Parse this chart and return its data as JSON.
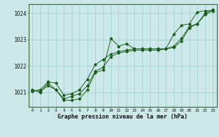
{
  "title": "Graphe pression niveau de la mer (hPa)",
  "bg_color": "#cce8e8",
  "grid_color": "#99cccc",
  "line_color": "#1a5c1a",
  "xlim": [
    -0.5,
    23.5
  ],
  "ylim": [
    1020.45,
    1024.35
  ],
  "yticks": [
    1021,
    1022,
    1023,
    1024
  ],
  "xtick_labels": [
    "0",
    "1",
    "2",
    "3",
    "4",
    "5",
    "6",
    "7",
    "8",
    "9",
    "10",
    "11",
    "12",
    "13",
    "14",
    "15",
    "16",
    "17",
    "18",
    "19",
    "20",
    "21",
    "22",
    "23"
  ],
  "series1": {
    "x": [
      0,
      1,
      2,
      3,
      4,
      5,
      6,
      7,
      8,
      9,
      10,
      11,
      12,
      13,
      14,
      15,
      16,
      17,
      18,
      19,
      20,
      21,
      22,
      23
    ],
    "y": [
      1021.1,
      1021.0,
      1021.35,
      1021.1,
      1020.7,
      1020.7,
      1020.75,
      1021.1,
      1021.75,
      1021.85,
      1023.05,
      1022.75,
      1022.85,
      1022.65,
      1022.65,
      1022.65,
      1022.65,
      1022.65,
      1023.2,
      1023.55,
      1023.6,
      1024.05,
      1024.1,
      1024.1
    ]
  },
  "series2": {
    "x": [
      0,
      1,
      2,
      3,
      4,
      5,
      6,
      7,
      8,
      9,
      10,
      11,
      12,
      13,
      14,
      15,
      16,
      17,
      18,
      19,
      20,
      21,
      22,
      23
    ],
    "y": [
      1021.05,
      1021.05,
      1021.25,
      1021.1,
      1020.75,
      1020.85,
      1020.95,
      1021.25,
      1021.8,
      1021.95,
      1022.35,
      1022.5,
      1022.55,
      1022.6,
      1022.6,
      1022.6,
      1022.6,
      1022.65,
      1022.7,
      1022.95,
      1023.45,
      1023.6,
      1023.95,
      1024.1
    ]
  },
  "series3": {
    "x": [
      0,
      1,
      2,
      3,
      4,
      5,
      6,
      7,
      8,
      9,
      10,
      11,
      12,
      13,
      14,
      15,
      16,
      17,
      18,
      19,
      20,
      21,
      22,
      23
    ],
    "y": [
      1021.05,
      1021.1,
      1021.4,
      1021.35,
      1020.9,
      1020.95,
      1021.1,
      1021.5,
      1022.05,
      1022.25,
      1022.45,
      1022.55,
      1022.6,
      1022.65,
      1022.65,
      1022.65,
      1022.65,
      1022.65,
      1022.75,
      1023.05,
      1023.5,
      1023.6,
      1024.0,
      1024.15
    ]
  }
}
